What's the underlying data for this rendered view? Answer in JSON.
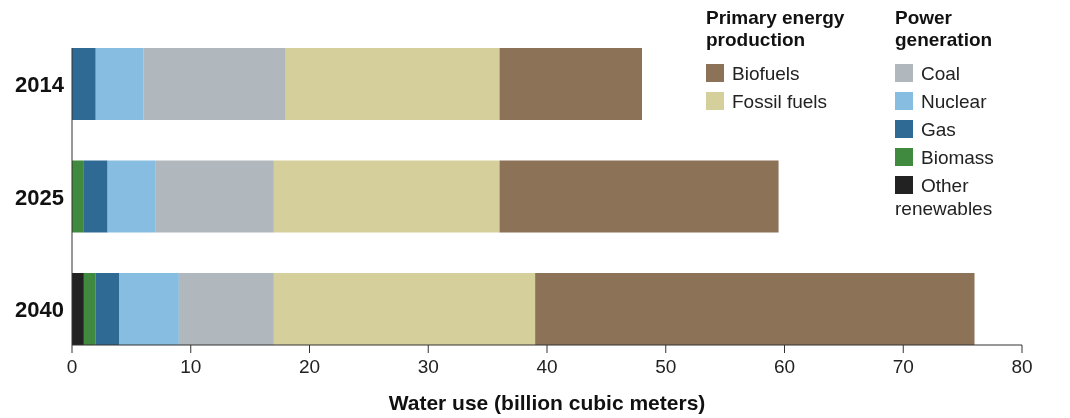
{
  "chart_data": {
    "type": "bar",
    "orientation": "horizontal",
    "stacked": true,
    "xlabel": "Water use (billion cubic meters)",
    "categories": [
      "2014",
      "2025",
      "2040"
    ],
    "xlim": [
      0,
      80
    ],
    "xticks": [
      0,
      10,
      20,
      30,
      40,
      50,
      60,
      70,
      80
    ],
    "legend": "top right",
    "annotations": [
      "Primary energy production",
      "Power generation"
    ],
    "series": [
      {
        "name": "Other renewables",
        "color": "#222222",
        "values": [
          0,
          0,
          1
        ]
      },
      {
        "name": "Biomass",
        "color": "#3f8a3f",
        "values": [
          0,
          1,
          1
        ]
      },
      {
        "name": "Gas",
        "color": "#2e6a94",
        "values": [
          2,
          2,
          2
        ]
      },
      {
        "name": "Nuclear",
        "color": "#87bde0",
        "values": [
          4,
          4,
          5
        ]
      },
      {
        "name": "Coal",
        "color": "#b0b8bd",
        "values": [
          12,
          10,
          8
        ]
      },
      {
        "name": "Fossil fuels",
        "color": "#d5cf9c",
        "values": [
          18,
          19,
          22
        ]
      },
      {
        "name": "Biofuels",
        "color": "#8c7358",
        "values": [
          12,
          23.5,
          37
        ]
      }
    ]
  }
}
